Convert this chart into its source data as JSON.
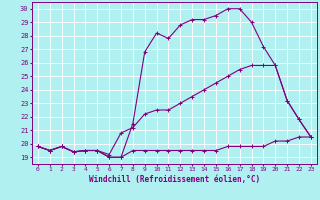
{
  "title": "",
  "xlabel": "Windchill (Refroidissement éolien,°C)",
  "ylabel": "",
  "bg_color": "#b0f0f0",
  "line_color": "#800080",
  "grid_color": "#ffffff",
  "xlim": [
    -0.5,
    23.5
  ],
  "ylim": [
    18.5,
    30.5
  ],
  "xticks": [
    0,
    1,
    2,
    3,
    4,
    5,
    6,
    7,
    8,
    9,
    10,
    11,
    12,
    13,
    14,
    15,
    16,
    17,
    18,
    19,
    20,
    21,
    22,
    23
  ],
  "yticks": [
    19,
    20,
    21,
    22,
    23,
    24,
    25,
    26,
    27,
    28,
    29,
    30
  ],
  "line1_x": [
    0,
    1,
    2,
    3,
    4,
    5,
    6,
    7,
    8,
    9,
    10,
    11,
    12,
    13,
    14,
    15,
    16,
    17,
    18,
    19,
    20,
    21,
    22,
    23
  ],
  "line1_y": [
    19.8,
    19.5,
    19.8,
    19.4,
    19.5,
    19.5,
    19.0,
    19.0,
    19.5,
    19.5,
    19.5,
    19.5,
    19.5,
    19.5,
    19.5,
    19.5,
    19.8,
    19.8,
    19.8,
    19.8,
    20.2,
    20.2,
    20.5,
    20.5
  ],
  "line2_x": [
    0,
    1,
    2,
    3,
    4,
    5,
    6,
    7,
    8,
    9,
    10,
    11,
    12,
    13,
    14,
    15,
    16,
    17,
    18,
    19,
    20,
    21,
    22,
    23
  ],
  "line2_y": [
    19.8,
    19.5,
    19.8,
    19.4,
    19.5,
    19.5,
    19.2,
    20.8,
    21.2,
    22.2,
    22.5,
    22.5,
    23.0,
    23.5,
    24.0,
    24.5,
    25.0,
    25.5,
    25.8,
    25.8,
    25.8,
    23.2,
    21.8,
    20.5
  ],
  "line3_x": [
    0,
    1,
    2,
    3,
    4,
    5,
    6,
    7,
    8,
    9,
    10,
    11,
    12,
    13,
    14,
    15,
    16,
    17,
    18,
    19,
    20,
    21,
    22,
    23
  ],
  "line3_y": [
    19.8,
    19.5,
    19.8,
    19.4,
    19.5,
    19.5,
    19.0,
    19.0,
    21.5,
    26.8,
    28.2,
    27.8,
    28.8,
    29.2,
    29.2,
    29.5,
    30.0,
    30.0,
    29.0,
    27.2,
    25.8,
    23.2,
    21.8,
    20.5
  ]
}
